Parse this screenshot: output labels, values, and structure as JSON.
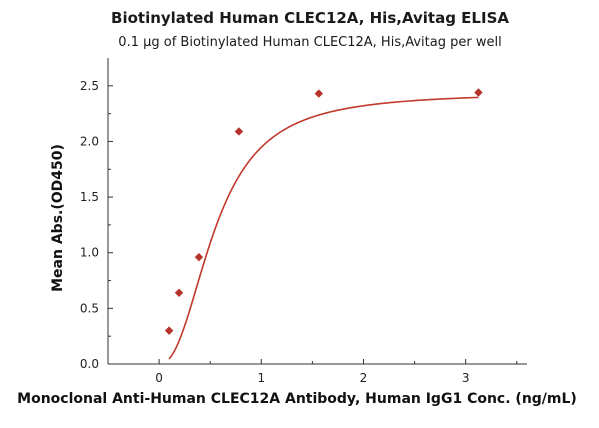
{
  "chart_data": {
    "type": "scatter",
    "title": "Biotinylated Human CLEC12A, His,Avitag ELISA",
    "subtitle": "0.1 μg of Biotinylated Human CLEC12A, His,Avitag per well",
    "xlabel": "Monoclonal Anti-Human CLEC12A Antibody, Human IgG1 Conc. (ng/mL)",
    "ylabel": "Mean Abs.(OD450)",
    "xlim": [
      -0.5,
      3.6
    ],
    "ylim": [
      0,
      2.75
    ],
    "x_ticks": [
      0,
      1,
      2,
      3
    ],
    "x_tick_labels": [
      "0",
      "1",
      "2",
      "3"
    ],
    "y_ticks": [
      0,
      0.5,
      1,
      1.5,
      2,
      2.5
    ],
    "y_tick_labels": [
      "0.0",
      "0.5",
      "1.0",
      "1.5",
      "2.0",
      "2.5"
    ],
    "grid": false,
    "series": [
      {
        "x": [
          0.098,
          0.195,
          0.39,
          0.781,
          1.563,
          3.125
        ],
        "y": [
          0.3,
          0.64,
          0.96,
          2.09,
          2.43,
          2.44
        ]
      }
    ],
    "colors": {
      "marker": "#b5332b",
      "curve": "#c0392b",
      "axis": "#333333"
    }
  }
}
